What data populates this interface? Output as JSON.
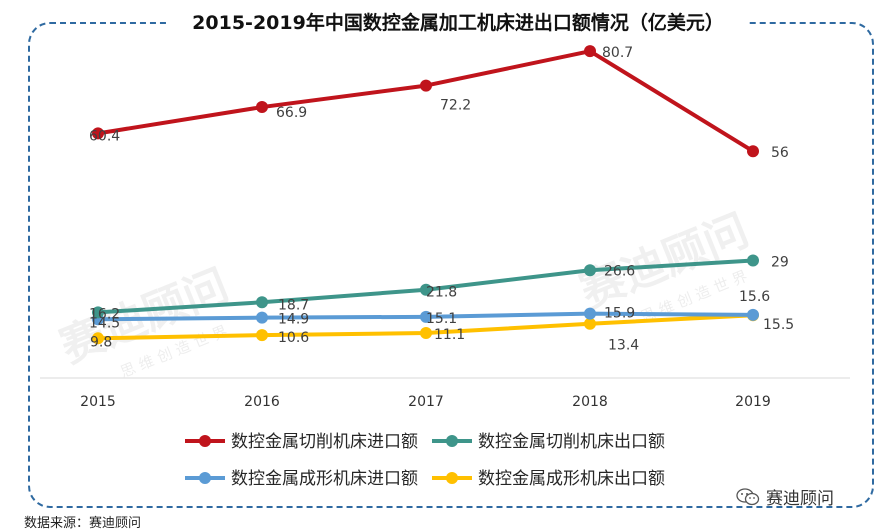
{
  "title": "2015-2019年中国数控金属加工机床进出口额情况（亿美元）",
  "source": "数据来源：赛迪顾问",
  "brand": "赛迪顾问",
  "watermark": {
    "main": "赛迪顾问",
    "sub": "思 维 创 造 世 界"
  },
  "chart_data": {
    "type": "line",
    "title": "2015-2019年中国数控金属加工机床进出口额情况（亿美元）",
    "x": [
      "2015",
      "2016",
      "2017",
      "2018",
      "2019"
    ],
    "ylim": [
      0,
      85
    ],
    "grid": false,
    "legend_position": "bottom",
    "series": [
      {
        "name": "数控金属切削机床进口额",
        "color": "#c0141c",
        "values": [
          60.4,
          66.9,
          72.2,
          80.7,
          56
        ]
      },
      {
        "name": "数控金属切削机床出口额",
        "color": "#3e958a",
        "values": [
          16.2,
          18.7,
          21.8,
          26.6,
          29
        ]
      },
      {
        "name": "数控金属成形机床进口额",
        "color": "#5b9bd5",
        "values": [
          14.5,
          14.9,
          15.1,
          15.9,
          15.6
        ]
      },
      {
        "name": "数控金属成形机床出口额",
        "color": "#ffc000",
        "values": [
          9.8,
          10.6,
          11.1,
          13.4,
          15.5
        ]
      }
    ]
  }
}
